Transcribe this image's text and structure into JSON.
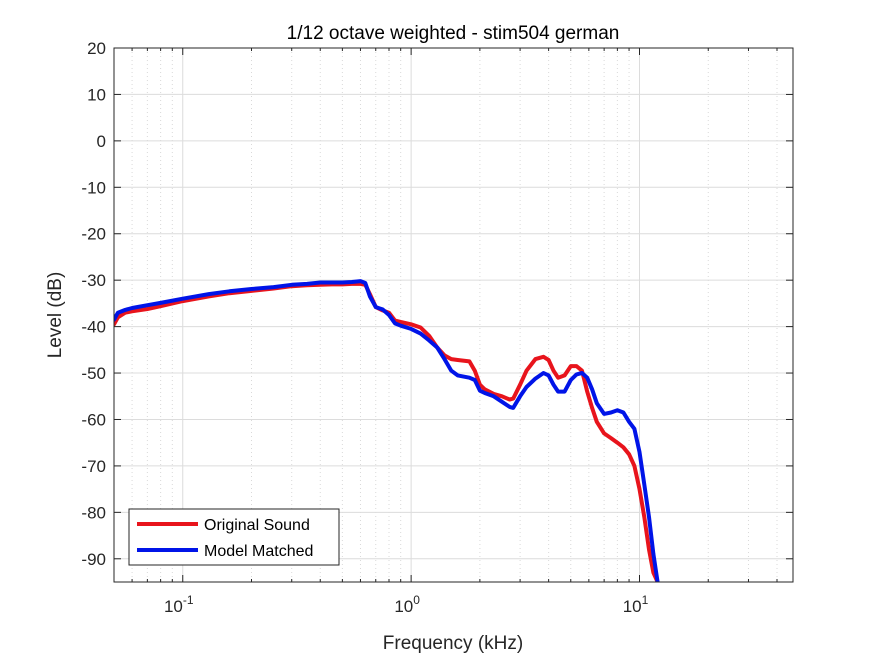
{
  "chart_data": {
    "type": "line",
    "title": "1/12 octave weighted - stim504 german",
    "xlabel": "Frequency (kHz)",
    "ylabel": "Level (dB)",
    "xscale": "log",
    "xlim": [
      0.05,
      47
    ],
    "ylim": [
      -95,
      20
    ],
    "grid": true,
    "legend_position": "bottom-left",
    "x_ticks": [
      {
        "value": 0.1,
        "base": "10",
        "exp": "-1"
      },
      {
        "value": 1,
        "base": "10",
        "exp": "0"
      },
      {
        "value": 10,
        "base": "10",
        "exp": "1"
      }
    ],
    "y_ticks": [
      20,
      10,
      0,
      -10,
      -20,
      -30,
      -40,
      -50,
      -60,
      -70,
      -80,
      -90
    ],
    "series": [
      {
        "name": "Original Sound",
        "color": "#e8141c",
        "x": [
          0.05,
          0.052,
          0.056,
          0.06,
          0.07,
          0.08,
          0.1,
          0.13,
          0.16,
          0.2,
          0.25,
          0.3,
          0.35,
          0.4,
          0.45,
          0.5,
          0.55,
          0.6,
          0.63,
          0.66,
          0.7,
          0.75,
          0.8,
          0.85,
          0.9,
          1.0,
          1.1,
          1.2,
          1.3,
          1.4,
          1.5,
          1.6,
          1.8,
          1.9,
          2.0,
          2.1,
          2.3,
          2.5,
          2.7,
          2.8,
          3.0,
          3.2,
          3.5,
          3.8,
          4.0,
          4.2,
          4.4,
          4.7,
          5.0,
          5.3,
          5.6,
          5.9,
          6.2,
          6.5,
          7.0,
          7.5,
          8.0,
          8.5,
          9.0,
          9.5,
          10.0,
          10.5,
          11.0,
          11.5,
          12.0
        ],
        "y": [
          -39.5,
          -38,
          -37,
          -36.7,
          -36.2,
          -35.6,
          -34.5,
          -33.5,
          -32.8,
          -32.3,
          -31.8,
          -31.3,
          -31.1,
          -31.0,
          -30.9,
          -30.9,
          -30.8,
          -30.8,
          -31.0,
          -33,
          -35.8,
          -36.5,
          -37,
          -38.7,
          -39,
          -39.5,
          -40.2,
          -42,
          -44.5,
          -46.2,
          -47,
          -47.2,
          -47.5,
          -49.5,
          -52.5,
          -53.5,
          -54.5,
          -55,
          -55.7,
          -55.5,
          -52.5,
          -49.5,
          -47,
          -46.5,
          -47.2,
          -49.5,
          -51,
          -50.5,
          -48.5,
          -48.5,
          -49.5,
          -54,
          -57.5,
          -60.5,
          -63,
          -64,
          -65,
          -66,
          -67.5,
          -70,
          -75,
          -81,
          -88,
          -93,
          -95
        ]
      },
      {
        "name": "Model Matched",
        "color": "#0014e8",
        "x": [
          0.05,
          0.052,
          0.056,
          0.06,
          0.07,
          0.08,
          0.1,
          0.13,
          0.16,
          0.2,
          0.25,
          0.3,
          0.35,
          0.4,
          0.45,
          0.5,
          0.55,
          0.6,
          0.63,
          0.66,
          0.7,
          0.75,
          0.8,
          0.85,
          0.9,
          1.0,
          1.1,
          1.2,
          1.3,
          1.4,
          1.5,
          1.6,
          1.8,
          1.9,
          2.0,
          2.1,
          2.3,
          2.5,
          2.7,
          2.8,
          3.0,
          3.2,
          3.5,
          3.8,
          4.0,
          4.2,
          4.4,
          4.7,
          5.0,
          5.3,
          5.6,
          5.9,
          6.2,
          6.5,
          7.0,
          7.5,
          8.0,
          8.5,
          9.0,
          9.5,
          10.0,
          10.5,
          11.0,
          11.5,
          12.0
        ],
        "y": [
          -38.5,
          -37,
          -36.4,
          -36.0,
          -35.4,
          -34.9,
          -34.0,
          -33.0,
          -32.4,
          -31.9,
          -31.5,
          -31.0,
          -30.8,
          -30.5,
          -30.5,
          -30.5,
          -30.4,
          -30.2,
          -30.6,
          -33.5,
          -35.8,
          -36.3,
          -37.5,
          -39.3,
          -39.8,
          -40.5,
          -41.5,
          -43.0,
          -44.5,
          -47.0,
          -49.5,
          -50.5,
          -51.0,
          -51.5,
          -53.8,
          -54.3,
          -55.0,
          -56.2,
          -57.3,
          -57.5,
          -55.0,
          -53.0,
          -51.2,
          -50.0,
          -50.5,
          -52.5,
          -54.0,
          -54.0,
          -51.5,
          -50.3,
          -50.0,
          -51.0,
          -53.5,
          -56.5,
          -58.8,
          -58.5,
          -58.0,
          -58.5,
          -60.5,
          -62.0,
          -67.0,
          -74.0,
          -81.0,
          -89.0,
          -95.0
        ]
      }
    ]
  }
}
